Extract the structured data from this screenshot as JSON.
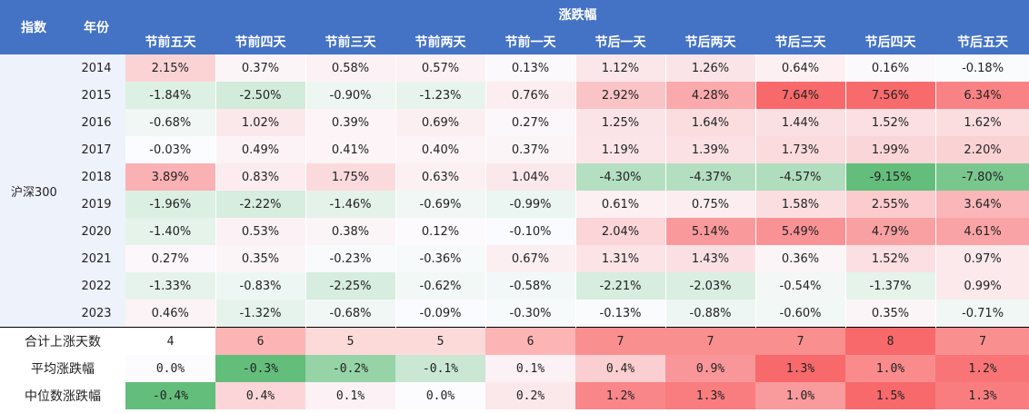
{
  "header": {
    "index_label": "指数",
    "year_label": "年份",
    "group_label": "涨跌幅",
    "columns": [
      "节前五天",
      "节前四天",
      "节前三天",
      "节前两天",
      "节前一天",
      "节后一天",
      "节后两天",
      "节后三天",
      "节后四天",
      "节后五天"
    ]
  },
  "index_name": "沪深300",
  "rows": [
    {
      "year": "2014",
      "values": [
        "2.15%",
        "0.37%",
        "0.58%",
        "0.57%",
        "0.13%",
        "1.12%",
        "1.26%",
        "0.64%",
        "0.16%",
        "-0.18%"
      ],
      "nums": [
        2.15,
        0.37,
        0.58,
        0.57,
        0.13,
        1.12,
        1.26,
        0.64,
        0.16,
        -0.18
      ]
    },
    {
      "year": "2015",
      "values": [
        "-1.84%",
        "-2.50%",
        "-0.90%",
        "-1.23%",
        "0.76%",
        "2.92%",
        "4.28%",
        "7.64%",
        "7.56%",
        "6.34%"
      ],
      "nums": [
        -1.84,
        -2.5,
        -0.9,
        -1.23,
        0.76,
        2.92,
        4.28,
        7.64,
        7.56,
        6.34
      ]
    },
    {
      "year": "2016",
      "values": [
        "-0.68%",
        "1.02%",
        "0.39%",
        "0.69%",
        "0.27%",
        "1.25%",
        "1.64%",
        "1.44%",
        "1.52%",
        "1.62%"
      ],
      "nums": [
        -0.68,
        1.02,
        0.39,
        0.69,
        0.27,
        1.25,
        1.64,
        1.44,
        1.52,
        1.62
      ]
    },
    {
      "year": "2017",
      "values": [
        "-0.03%",
        "0.49%",
        "0.41%",
        "0.40%",
        "0.37%",
        "1.19%",
        "1.39%",
        "1.73%",
        "1.99%",
        "2.20%"
      ],
      "nums": [
        -0.03,
        0.49,
        0.41,
        0.4,
        0.37,
        1.19,
        1.39,
        1.73,
        1.99,
        2.2
      ]
    },
    {
      "year": "2018",
      "values": [
        "3.89%",
        "0.83%",
        "1.75%",
        "0.63%",
        "1.04%",
        "-4.30%",
        "-4.37%",
        "-4.57%",
        "-9.15%",
        "-7.80%"
      ],
      "nums": [
        3.89,
        0.83,
        1.75,
        0.63,
        1.04,
        -4.3,
        -4.37,
        -4.57,
        -9.15,
        -7.8
      ]
    },
    {
      "year": "2019",
      "values": [
        "-1.96%",
        "-2.22%",
        "-1.46%",
        "-0.69%",
        "-0.99%",
        "0.61%",
        "0.75%",
        "1.58%",
        "2.55%",
        "3.64%"
      ],
      "nums": [
        -1.96,
        -2.22,
        -1.46,
        -0.69,
        -0.99,
        0.61,
        0.75,
        1.58,
        2.55,
        3.64
      ]
    },
    {
      "year": "2020",
      "values": [
        "-1.40%",
        "0.53%",
        "0.38%",
        "0.12%",
        "-0.10%",
        "2.04%",
        "5.14%",
        "5.49%",
        "4.79%",
        "4.61%"
      ],
      "nums": [
        -1.4,
        0.53,
        0.38,
        0.12,
        -0.1,
        2.04,
        5.14,
        5.49,
        4.79,
        4.61
      ]
    },
    {
      "year": "2021",
      "values": [
        "0.27%",
        "0.35%",
        "-0.23%",
        "-0.36%",
        "0.67%",
        "1.31%",
        "1.43%",
        "0.36%",
        "1.52%",
        "0.97%"
      ],
      "nums": [
        0.27,
        0.35,
        -0.23,
        -0.36,
        0.67,
        1.31,
        1.43,
        0.36,
        1.52,
        0.97
      ]
    },
    {
      "year": "2022",
      "values": [
        "-1.33%",
        "-0.83%",
        "-2.25%",
        "-0.62%",
        "-0.58%",
        "-2.21%",
        "-2.03%",
        "-0.54%",
        "-1.37%",
        "0.99%"
      ],
      "nums": [
        -1.33,
        -0.83,
        -2.25,
        -0.62,
        -0.58,
        -2.21,
        -2.03,
        -0.54,
        -1.37,
        0.99
      ]
    },
    {
      "year": "2023",
      "values": [
        "0.46%",
        "-1.32%",
        "-0.68%",
        "-0.09%",
        "-0.30%",
        "-0.13%",
        "-0.88%",
        "-0.60%",
        "0.35%",
        "-0.71%"
      ],
      "nums": [
        0.46,
        -1.32,
        -0.68,
        -0.09,
        -0.3,
        -0.13,
        -0.88,
        -0.6,
        0.35,
        -0.71
      ]
    }
  ],
  "summary": [
    {
      "label": "合计上涨天数",
      "values": [
        "4",
        "6",
        "5",
        "5",
        "6",
        "7",
        "7",
        "7",
        "8",
        "7"
      ],
      "nums": [
        4,
        6,
        5,
        5,
        6,
        7,
        7,
        7,
        8,
        7
      ],
      "scale": "count"
    },
    {
      "label": "平均涨跌幅",
      "values": [
        "0.0%",
        "-0.3%",
        "-0.2%",
        "-0.1%",
        "0.1%",
        "0.4%",
        "0.9%",
        "1.3%",
        "1.0%",
        "1.2%"
      ],
      "nums": [
        0.0,
        -0.3,
        -0.2,
        -0.1,
        0.1,
        0.4,
        0.9,
        1.3,
        1.0,
        1.2
      ],
      "scale": "pct"
    },
    {
      "label": "中位数涨跌幅",
      "values": [
        "-0.4%",
        "0.4%",
        "0.1%",
        "0.0%",
        "0.2%",
        "1.2%",
        "1.3%",
        "1.0%",
        "1.5%",
        "1.3%"
      ],
      "nums": [
        -0.4,
        0.4,
        0.1,
        0.0,
        0.2,
        1.2,
        1.3,
        1.0,
        1.5,
        1.3
      ],
      "scale": "pct"
    }
  ],
  "colors": {
    "header_bg": "#4472c4",
    "header_text": "#ffffff",
    "label_bg": "#eef2fb",
    "positive_max": "#f8696b",
    "negative_max": "#63be7b",
    "neutral": "#fcfcff"
  }
}
